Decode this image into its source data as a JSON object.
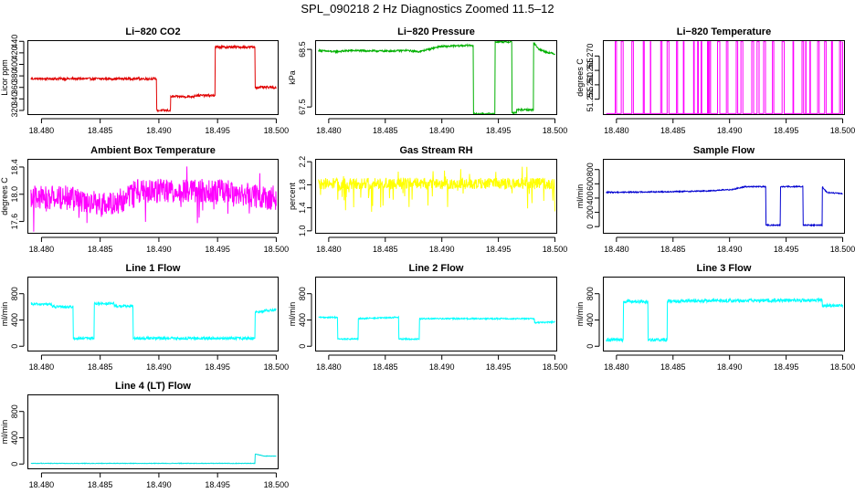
{
  "figure_title": "SPL_090218  2 Hz Diagnostics Zoomed 11.5–12",
  "chart_data": [
    {
      "type": "line",
      "title": "Li−820 CO2",
      "xlabel": "",
      "ylabel": "Licor ppm",
      "xlim": [
        18.4788,
        18.5002
      ],
      "ylim": [
        312,
        442
      ],
      "xticks": [
        "18.480",
        "18.485",
        "18.490",
        "18.495",
        "18.500"
      ],
      "yticks": [
        "320",
        "340",
        "360",
        "380",
        "400",
        "420",
        "440"
      ],
      "series": [
        {
          "color": "#e00000",
          "noise": 2,
          "x": [
            18.4791,
            18.4898,
            18.4898,
            18.491,
            18.491,
            18.493,
            18.493,
            18.4948,
            18.4948,
            18.4982,
            18.4982,
            18.5
          ],
          "y": [
            375,
            375,
            320,
            320,
            344,
            344,
            346,
            346,
            430,
            430,
            360,
            360
          ]
        }
      ]
    },
    {
      "type": "line",
      "title": "Li−820 Pressure",
      "xlabel": "",
      "ylabel": "kPa",
      "xlim": [
        18.4788,
        18.5002
      ],
      "ylim": [
        67.36,
        68.66
      ],
      "xticks": [
        "18.480",
        "18.485",
        "18.490",
        "18.495",
        "18.500"
      ],
      "yticks": [
        "67.5",
        "68.5"
      ],
      "series": [
        {
          "color": "#00b000",
          "noise": 0.015,
          "x": [
            18.4791,
            18.4805,
            18.482,
            18.485,
            18.487,
            18.488,
            18.4898,
            18.4912,
            18.4925,
            18.4928,
            18.4928,
            18.4947,
            18.4947,
            18.4962,
            18.4962,
            18.4966,
            18.4966,
            18.4981,
            18.4981,
            18.4986,
            18.4993,
            18.5
          ],
          "y": [
            68.48,
            68.46,
            68.48,
            68.47,
            68.48,
            68.46,
            68.55,
            68.56,
            68.57,
            68.57,
            67.38,
            67.38,
            68.63,
            68.63,
            67.4,
            67.4,
            67.45,
            67.45,
            68.62,
            68.5,
            68.45,
            68.42
          ]
        }
      ]
    },
    {
      "type": "line",
      "title": "Li−820 Temperature",
      "xlabel": "",
      "ylabel": "degrees C",
      "xlim": [
        18.4788,
        18.5002
      ],
      "ylim": [
        51.2495,
        51.2755
      ],
      "xticks": [
        "18.480",
        "18.485",
        "18.490",
        "18.495",
        "18.500"
      ],
      "yticks": [
        "51.255",
        "51.260",
        "51.265",
        "51.270"
      ],
      "series": [
        {
          "color": "#ff00ff",
          "mode": "binary",
          "seed": 7,
          "x": [
            18.4791,
            18.5
          ],
          "y": [
            51.25,
            51.275
          ]
        }
      ]
    },
    {
      "type": "line",
      "title": "Ambient Box Temperature",
      "xlabel": "",
      "ylabel": "degrees C",
      "xlim": [
        18.4788,
        18.5002
      ],
      "ylim": [
        17.42,
        18.52
      ],
      "xticks": [
        "18.480",
        "18.485",
        "18.490",
        "18.495",
        "18.500"
      ],
      "yticks": [
        "17.6",
        "18.0",
        "18.4"
      ],
      "series": [
        {
          "color": "#ff00ff",
          "noise": 0.18,
          "spikes": 0.35,
          "x": [
            18.4791,
            18.482,
            18.4855,
            18.4865,
            18.488,
            18.496,
            18.499,
            18.5
          ],
          "y": [
            17.95,
            17.95,
            17.85,
            17.85,
            18.05,
            18.05,
            17.95,
            17.95
          ]
        }
      ]
    },
    {
      "type": "line",
      "title": "Gas Stream RH",
      "xlabel": "",
      "ylabel": "percent",
      "xlim": [
        18.4788,
        18.5002
      ],
      "ylim": [
        0.95,
        2.25
      ],
      "xticks": [
        "18.480",
        "18.485",
        "18.490",
        "18.495",
        "18.500"
      ],
      "yticks": [
        "1.0",
        "1.4",
        "1.8",
        "2.2"
      ],
      "series": [
        {
          "color": "#ffff00",
          "noise": 0.1,
          "spikes": 0.5,
          "x": [
            18.4791,
            18.5
          ],
          "y": [
            1.82,
            1.82
          ]
        }
      ]
    },
    {
      "type": "line",
      "title": "Sample Flow",
      "xlabel": "",
      "ylabel": "ml/min",
      "xlim": [
        18.4788,
        18.5002
      ],
      "ylim": [
        -100,
        950
      ],
      "xticks": [
        "18.480",
        "18.485",
        "18.490",
        "18.495",
        "18.500"
      ],
      "yticks": [
        "0",
        "200",
        "400",
        "600",
        "800"
      ],
      "series": [
        {
          "color": "#0000d0",
          "noise": 8,
          "x": [
            18.4791,
            18.485,
            18.488,
            18.4902,
            18.4914,
            18.4932,
            18.4932,
            18.4945,
            18.4945,
            18.4965,
            18.4965,
            18.4982,
            18.4982,
            18.4986,
            18.5
          ],
          "y": [
            480,
            490,
            500,
            520,
            560,
            560,
            20,
            20,
            560,
            560,
            20,
            20,
            560,
            480,
            460
          ]
        }
      ]
    },
    {
      "type": "line",
      "title": "Line 1 Flow",
      "xlabel": "",
      "ylabel": "ml/min",
      "xlim": [
        18.4788,
        18.5002
      ],
      "ylim": [
        -80,
        1060
      ],
      "xticks": [
        "18.480",
        "18.485",
        "18.490",
        "18.495",
        "18.500"
      ],
      "yticks": [
        "0",
        "400",
        "800"
      ],
      "series": [
        {
          "color": "#00ffff",
          "noise": 20,
          "x": [
            18.4791,
            18.4809,
            18.4809,
            18.4827,
            18.4827,
            18.4845,
            18.4845,
            18.4862,
            18.4862,
            18.4878,
            18.4878,
            18.4982,
            18.4982,
            18.5
          ],
          "y": [
            640,
            640,
            600,
            600,
            120,
            120,
            650,
            650,
            610,
            610,
            120,
            120,
            520,
            560
          ]
        }
      ]
    },
    {
      "type": "line",
      "title": "Line 2 Flow",
      "xlabel": "",
      "ylabel": "ml/min",
      "xlim": [
        18.4788,
        18.5002
      ],
      "ylim": [
        -80,
        1060
      ],
      "xticks": [
        "18.480",
        "18.485",
        "18.490",
        "18.495",
        "18.500"
      ],
      "yticks": [
        "0",
        "400",
        "800"
      ],
      "series": [
        {
          "color": "#00ffff",
          "noise": 10,
          "x": [
            18.4791,
            18.4808,
            18.4808,
            18.4826,
            18.4826,
            18.4862,
            18.4862,
            18.488,
            18.488,
            18.4982,
            18.4982,
            18.5
          ],
          "y": [
            440,
            440,
            110,
            110,
            420,
            440,
            110,
            110,
            420,
            420,
            360,
            370
          ]
        }
      ]
    },
    {
      "type": "line",
      "title": "Line 3 Flow",
      "xlabel": "",
      "ylabel": "ml/min",
      "xlim": [
        18.4788,
        18.5002
      ],
      "ylim": [
        -80,
        1060
      ],
      "xticks": [
        "18.480",
        "18.485",
        "18.490",
        "18.495",
        "18.500"
      ],
      "yticks": [
        "0",
        "400",
        "800"
      ],
      "series": [
        {
          "color": "#00ffff",
          "noise": 25,
          "x": [
            18.4791,
            18.4806,
            18.4806,
            18.4808,
            18.4828,
            18.4828,
            18.4845,
            18.4845,
            18.4982,
            18.4982,
            18.5
          ],
          "y": [
            100,
            100,
            680,
            680,
            680,
            100,
            100,
            690,
            700,
            620,
            620
          ]
        }
      ]
    },
    {
      "type": "line",
      "title": "Line 4 (LT) Flow",
      "xlabel": "",
      "ylabel": "ml/min",
      "xlim": [
        18.4788,
        18.5002
      ],
      "ylim": [
        -80,
        1060
      ],
      "xticks": [
        "18.480",
        "18.485",
        "18.490",
        "18.495",
        "18.500"
      ],
      "yticks": [
        "0",
        "400",
        "800"
      ],
      "series": [
        {
          "color": "#00e0e0",
          "noise": 4,
          "x": [
            18.4791,
            18.4982,
            18.4982,
            18.4985,
            18.499,
            18.5
          ],
          "y": [
            10,
            10,
            150,
            140,
            120,
            120
          ]
        }
      ]
    }
  ]
}
